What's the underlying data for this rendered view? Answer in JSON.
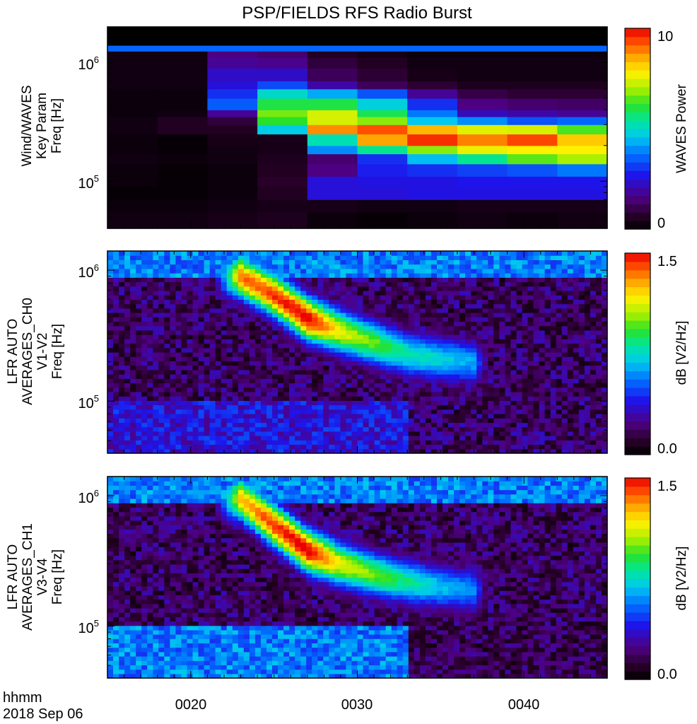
{
  "title": "PSP/FIELDS RFS Radio Burst",
  "footer": {
    "time_format": "hhmm",
    "date": "2018 Sep 06"
  },
  "x_ticks": [
    "0020",
    "0030",
    "0040"
  ],
  "panels": [
    {
      "ylabel": [
        "Wind/WAVES",
        "Key Param",
        "Freq [Hz]"
      ],
      "y_ticks": [
        {
          "base": "10",
          "exp": "6"
        },
        {
          "base": "10",
          "exp": "5"
        }
      ],
      "colorbar": {
        "label": "WAVES Power",
        "max": "10",
        "min": "0"
      }
    },
    {
      "ylabel": [
        "LFR AUTO",
        "AVERAGES_CH0",
        "V1-V2",
        "Freq [Hz]"
      ],
      "y_ticks": [
        {
          "base": "10",
          "exp": "6"
        },
        {
          "base": "10",
          "exp": "5"
        }
      ],
      "colorbar": {
        "label": "dB [V2/Hz]",
        "max": "1.5",
        "min": "0.0"
      }
    },
    {
      "ylabel": [
        "LFR AUTO",
        "AVERAGES_CH1",
        "V3-V4",
        "Freq [Hz]"
      ],
      "y_ticks": [
        {
          "base": "10",
          "exp": "6"
        },
        {
          "base": "10",
          "exp": "5"
        }
      ],
      "colorbar": {
        "label": "dB [V2/Hz]",
        "max": "1.5",
        "min": "0.0"
      }
    }
  ],
  "chart_data": [
    {
      "type": "heatmap",
      "title": "PSP/FIELDS RFS Radio Burst",
      "xlabel": "hhmm",
      "ylabel": "Wind/WAVES Key Param Freq [Hz]",
      "colorbar_label": "WAVES Power",
      "z_range": [
        0,
        10
      ],
      "y_scale": "log",
      "x_range": [
        "00:15",
        "00:45"
      ],
      "y_range": [
        40000,
        2000000
      ],
      "x_time_bins": [
        "00:15",
        "00:18",
        "00:21",
        "00:24",
        "00:27",
        "00:30",
        "00:33",
        "00:36",
        "00:39",
        "00:42"
      ],
      "y_freq_bins_hz": [
        40000,
        55000,
        70000,
        90000,
        110000,
        140000,
        170000,
        200000,
        250000,
        300000,
        350000,
        400000,
        500000,
        600000,
        700000,
        900000,
        1100000,
        1250000,
        1400000,
        2000000
      ],
      "z": [
        [
          0.3,
          0.3,
          0.4,
          0.5,
          0.2,
          0.1,
          0.2,
          0.3,
          0.2,
          0.3
        ],
        [
          0.2,
          0.2,
          0.3,
          0.4,
          0.4,
          0.3,
          0.3,
          0.4,
          0.4,
          0.4
        ],
        [
          0.1,
          0.1,
          0.2,
          0.6,
          2.5,
          2.5,
          2.6,
          2.6,
          2.6,
          2.6
        ],
        [
          0.2,
          0.1,
          0.2,
          0.7,
          2.5,
          2.6,
          2.6,
          2.7,
          2.7,
          2.7
        ],
        [
          0.2,
          0.1,
          0.2,
          0.6,
          1.6,
          2.8,
          3.0,
          3.2,
          3.4,
          3.8
        ],
        [
          0.3,
          0.2,
          0.3,
          0.5,
          1.4,
          3.0,
          4.5,
          5.5,
          6.5,
          7.0
        ],
        [
          0.2,
          0.1,
          0.3,
          0.4,
          4.0,
          5.5,
          6.8,
          7.6,
          7.8,
          7.8
        ],
        [
          0.2,
          0.1,
          0.4,
          0.4,
          5.2,
          8.6,
          9.6,
          8.9,
          9.4,
          8.2
        ],
        [
          0.3,
          0.6,
          0.6,
          4.7,
          8.8,
          9.3,
          8.4,
          7.5,
          7.4,
          6.4
        ],
        [
          0.3,
          0.6,
          0.9,
          6.2,
          7.4,
          6.8,
          4.6,
          4.0,
          3.4,
          3.6
        ],
        [
          0.2,
          0.3,
          1.8,
          6.7,
          7.4,
          5.9,
          3.8,
          2.2,
          2.0,
          1.8
        ],
        [
          0.2,
          0.2,
          3.5,
          6.0,
          6.0,
          4.8,
          3.0,
          1.6,
          1.4,
          1.3
        ],
        [
          0.2,
          0.2,
          3.0,
          5.0,
          4.3,
          3.4,
          1.8,
          1.0,
          0.8,
          0.8
        ],
        [
          0.3,
          0.3,
          2.5,
          3.3,
          2.0,
          1.2,
          0.8,
          0.5,
          0.5,
          0.5
        ],
        [
          0.3,
          0.3,
          2.3,
          2.3,
          1.2,
          0.8,
          0.4,
          0.3,
          0.3,
          0.3
        ],
        [
          0.3,
          0.3,
          1.8,
          1.7,
          0.9,
          0.6,
          0.3,
          0.3,
          0.3,
          0.3
        ],
        [
          0.3,
          0.3,
          1.6,
          1.4,
          0.6,
          0.4,
          0.2,
          0.2,
          0.2,
          0.2
        ],
        [
          3.6,
          3.6,
          3.6,
          3.6,
          3.6,
          3.6,
          3.6,
          3.6,
          3.6,
          3.6
        ],
        [
          0.0,
          0.0,
          0.0,
          0.0,
          0.0,
          0.0,
          0.0,
          0.0,
          0.0,
          0.0
        ]
      ]
    },
    {
      "type": "heatmap",
      "ylabel": "LFR AUTO AVERAGES_CH0 V1-V2 Freq [Hz]",
      "colorbar_label": "dB [V2/Hz]",
      "z_range": [
        0.0,
        1.5
      ],
      "y_scale": "log",
      "x_range": [
        "00:15",
        "00:45"
      ],
      "y_range": [
        40000,
        1400000
      ],
      "burst_ridge": [
        {
          "time": "00:23",
          "freq_hz": 900000,
          "level": 1.3
        },
        {
          "time": "00:25",
          "freq_hz": 650000,
          "level": 1.4
        },
        {
          "time": "00:27",
          "freq_hz": 430000,
          "level": 1.5
        },
        {
          "time": "00:29",
          "freq_hz": 340000,
          "level": 1.1
        },
        {
          "time": "00:31",
          "freq_hz": 280000,
          "level": 0.95
        },
        {
          "time": "00:33",
          "freq_hz": 230000,
          "level": 0.75
        },
        {
          "time": "00:35",
          "freq_hz": 210000,
          "level": 0.7
        },
        {
          "time": "00:37",
          "freq_hz": 200000,
          "level": 0.6
        }
      ]
    },
    {
      "type": "heatmap",
      "ylabel": "LFR AUTO AVERAGES_CH1 V3-V4 Freq [Hz]",
      "colorbar_label": "dB [V2/Hz]",
      "z_range": [
        0.0,
        1.5
      ],
      "y_scale": "log",
      "x_range": [
        "00:15",
        "00:45"
      ],
      "y_range": [
        40000,
        1400000
      ],
      "burst_ridge": [
        {
          "time": "00:23",
          "freq_hz": 950000,
          "level": 1.2
        },
        {
          "time": "00:25",
          "freq_hz": 600000,
          "level": 1.4
        },
        {
          "time": "00:27",
          "freq_hz": 380000,
          "level": 1.5
        },
        {
          "time": "00:29",
          "freq_hz": 300000,
          "level": 1.1
        },
        {
          "time": "00:31",
          "freq_hz": 250000,
          "level": 0.95
        },
        {
          "time": "00:33",
          "freq_hz": 220000,
          "level": 0.8
        },
        {
          "time": "00:35",
          "freq_hz": 200000,
          "level": 0.65
        },
        {
          "time": "00:37",
          "freq_hz": 190000,
          "level": 0.55
        }
      ]
    }
  ]
}
